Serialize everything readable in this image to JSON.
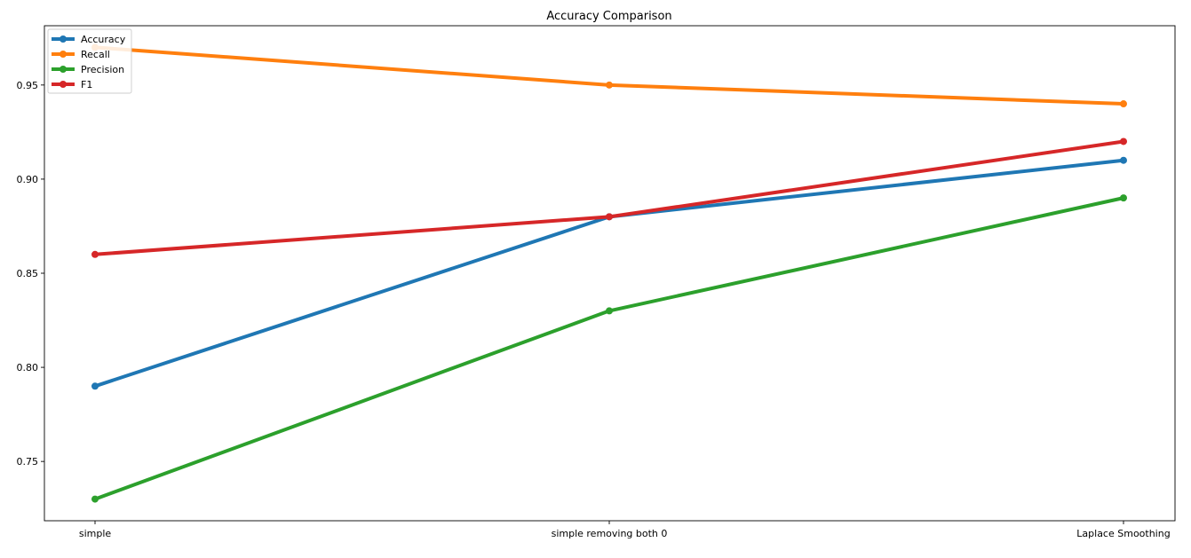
{
  "chart_data": {
    "type": "line",
    "title": "Accuracy Comparison",
    "xlabel": "",
    "ylabel": "",
    "categories": [
      "simple",
      "simple removing both 0",
      "Laplace Smoothing"
    ],
    "series": [
      {
        "name": "Accuracy",
        "values": [
          0.79,
          0.88,
          0.91
        ],
        "color": "#1f77b4"
      },
      {
        "name": "Recall",
        "values": [
          0.97,
          0.95,
          0.94
        ],
        "color": "#ff7f0e"
      },
      {
        "name": "Precision",
        "values": [
          0.73,
          0.83,
          0.89
        ],
        "color": "#2ca02c"
      },
      {
        "name": "F1",
        "values": [
          0.86,
          0.88,
          0.92
        ],
        "color": "#d62728"
      }
    ],
    "yticks": [
      "0.75",
      "0.80",
      "0.85",
      "0.90",
      "0.95"
    ],
    "ylim": [
      0.7185,
      0.9815
    ],
    "grid": false,
    "legend_position": "upper-left"
  }
}
